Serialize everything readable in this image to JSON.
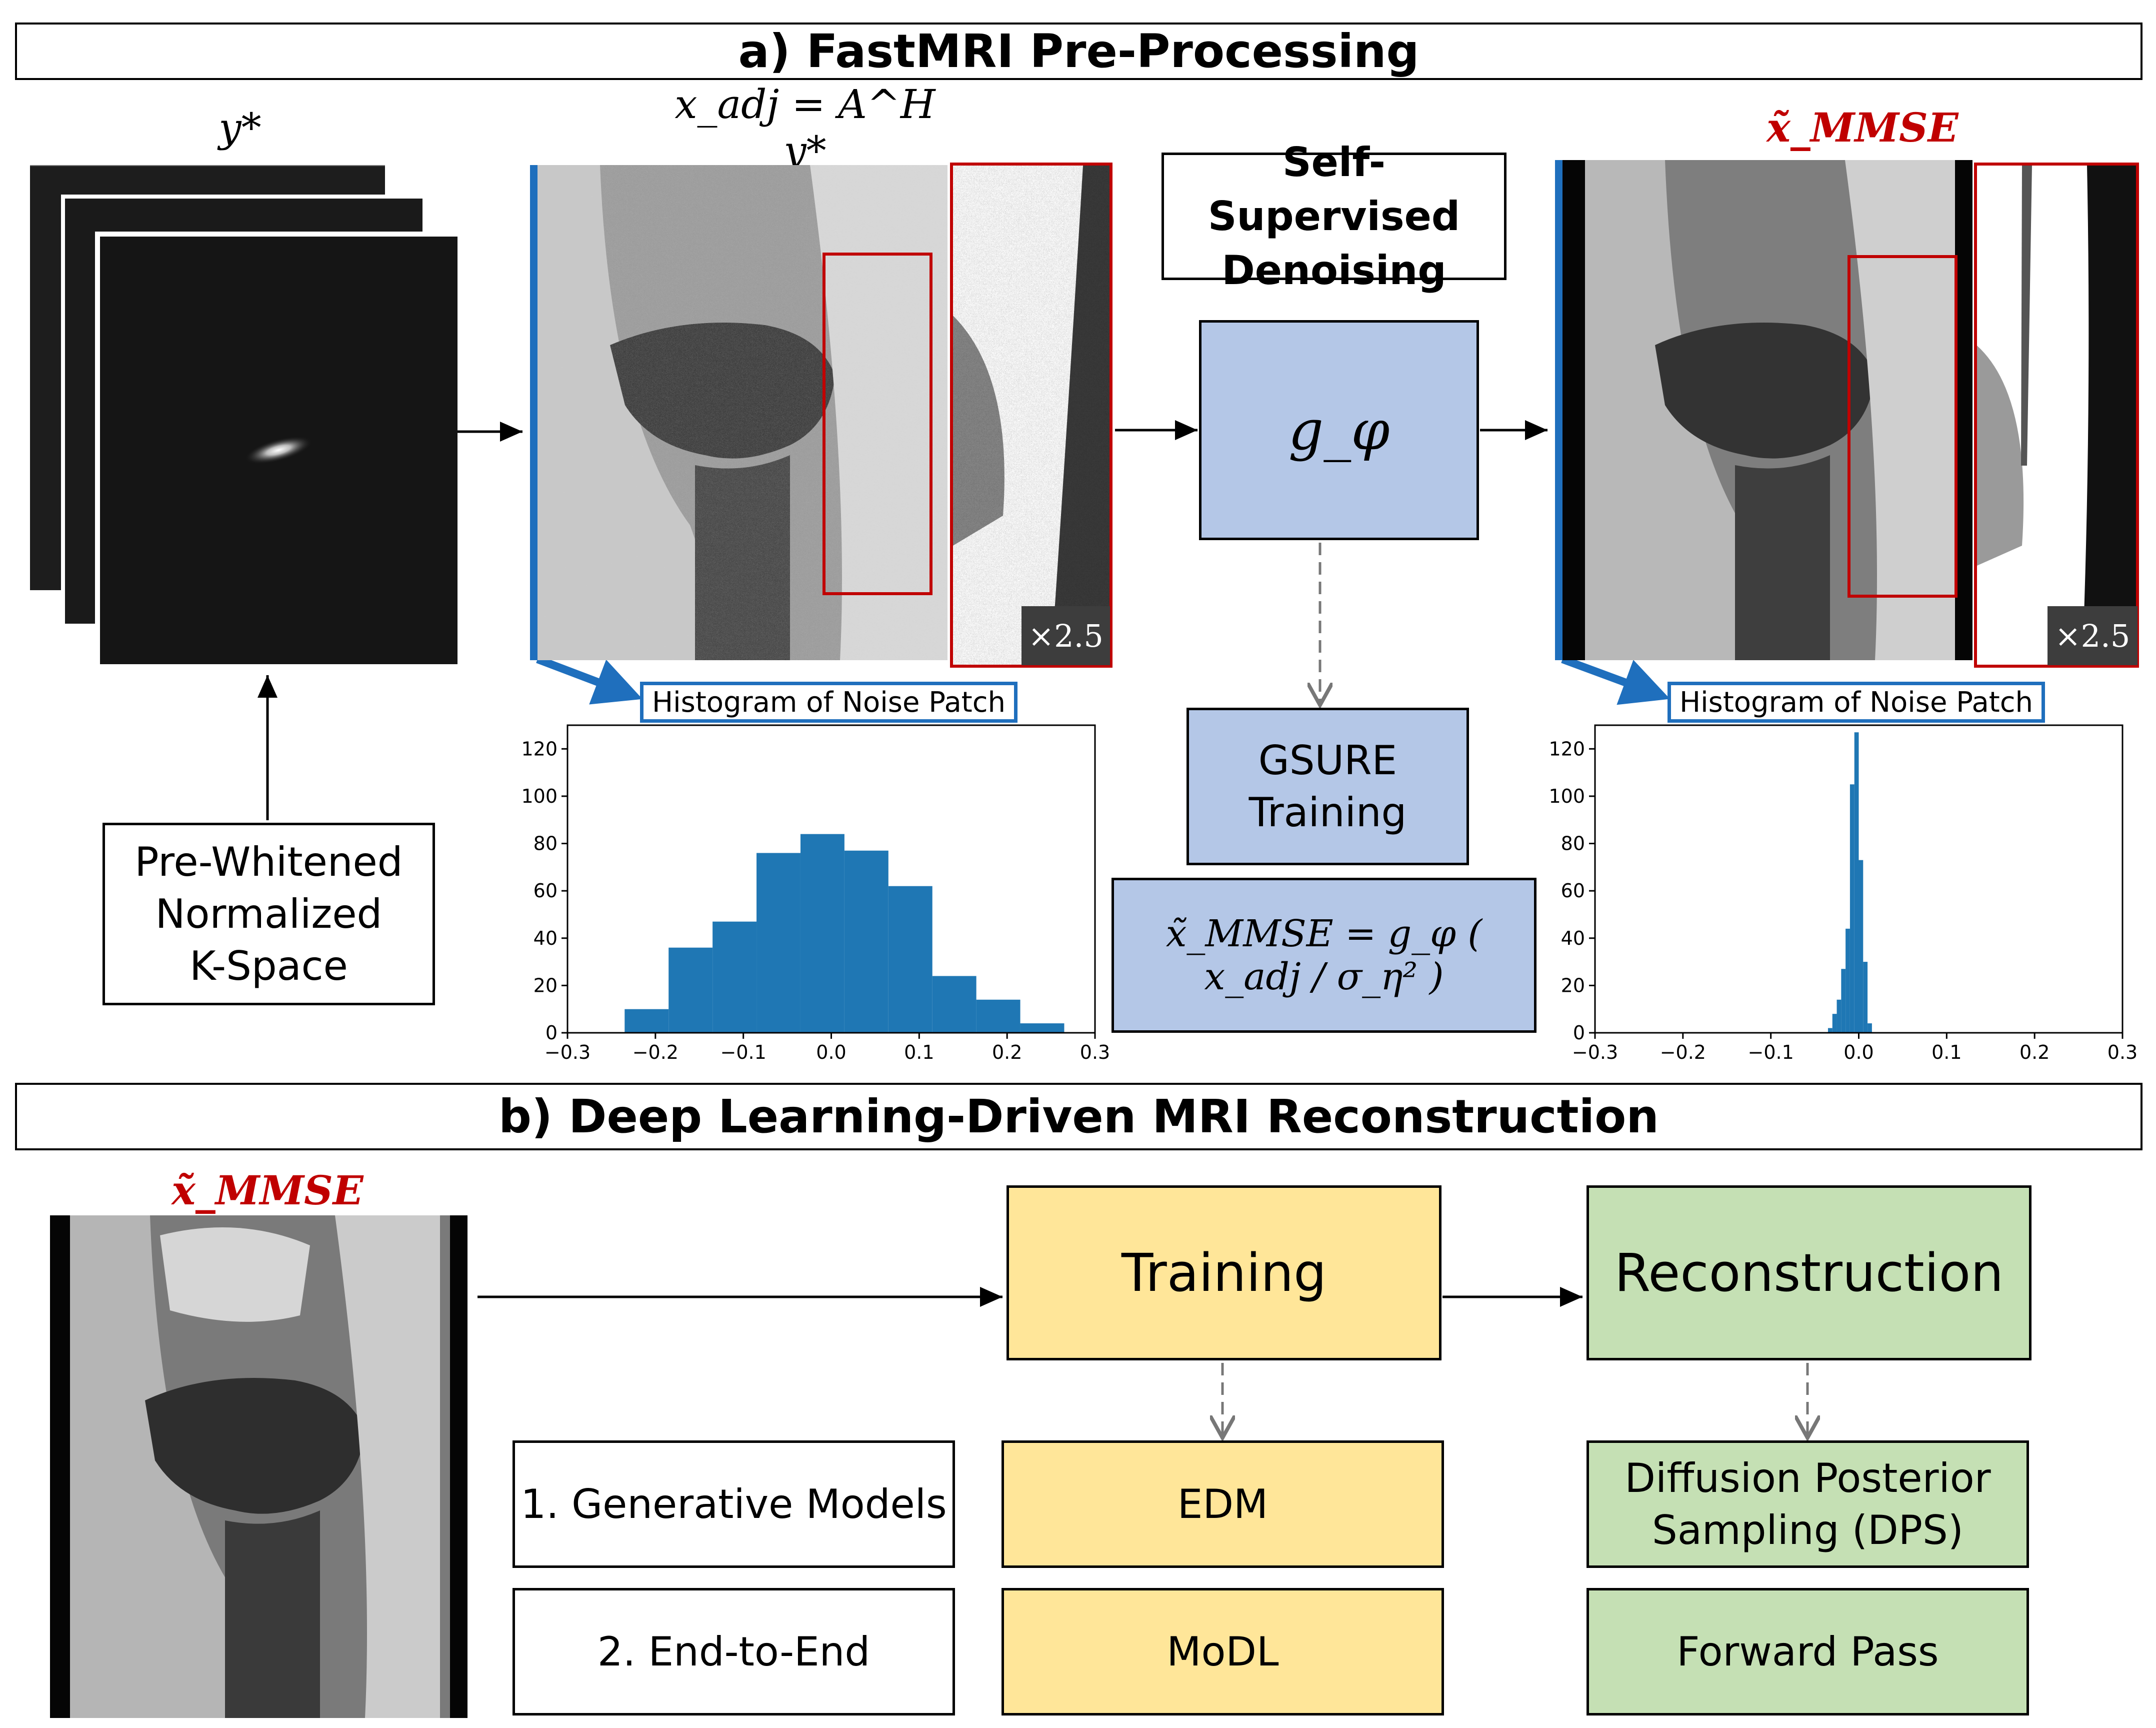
{
  "section_a": {
    "title": "a) FastMRI Pre-Processing",
    "kspace_symbol": "y*",
    "adjoint_symbol": "x_adj = A^H y*",
    "denoised_symbol": "x̃_MMSE",
    "prewhitened_label": [
      "Pre-Whitened",
      "Normalized",
      "K-Space"
    ],
    "self_supervised_label": [
      "Self-Supervised",
      "Denoising"
    ],
    "network_symbol": "g_φ",
    "gsure_label": [
      "GSURE",
      "Training"
    ],
    "mmse_formula": "x̃_MMSE = g_φ ( x_adj / σ_η² )",
    "zoom_label": "×2.5",
    "hist_title": "Histogram of Noise Patch"
  },
  "section_b": {
    "title": "b) Deep Learning-Driven MRI Reconstruction",
    "input_symbol": "x̃_MMSE",
    "training_label": "Training",
    "reconstruction_label": "Reconstruction",
    "rows": [
      {
        "category": "1. Generative Models",
        "training": "EDM",
        "reconstruction": [
          "Diffusion Posterior",
          "Sampling (DPS)"
        ]
      },
      {
        "category": "2. End-to-End",
        "training": "MoDL",
        "reconstruction": [
          "Forward Pass"
        ]
      }
    ]
  },
  "colors": {
    "hist_bar": "#1f77b4",
    "accent_blue": "#1f6fbd",
    "zoom_red": "#c00000",
    "box_blue": "#b4c7e7",
    "box_yellow": "#ffe699",
    "box_green": "#c5e0b4"
  },
  "chart_data": [
    {
      "type": "bar",
      "title": "Histogram of Noise Patch",
      "x": [
        -0.21,
        -0.16,
        -0.11,
        -0.06,
        -0.01,
        0.04,
        0.09,
        0.14,
        0.19,
        0.24
      ],
      "bin_width": 0.05,
      "values": [
        10,
        36,
        47,
        76,
        84,
        77,
        62,
        24,
        14,
        4
      ],
      "xlim": [
        -0.3,
        0.3
      ],
      "ylim": [
        0,
        130
      ],
      "xticks": [
        "−0.3",
        "−0.2",
        "−0.1",
        "0.0",
        "0.1",
        "0.2",
        "0.3"
      ],
      "yticks": [
        "0",
        "20",
        "40",
        "60",
        "80",
        "100",
        "120"
      ]
    },
    {
      "type": "bar",
      "title": "Histogram of Noise Patch",
      "x": [
        -0.0325,
        -0.0275,
        -0.0225,
        -0.0175,
        -0.0125,
        -0.0075,
        -0.0025,
        0.0025,
        0.0075,
        0.0125
      ],
      "bin_width": 0.005,
      "values": [
        2,
        8,
        14,
        27,
        44,
        105,
        127,
        73,
        30,
        4
      ],
      "xlim": [
        -0.3,
        0.3
      ],
      "ylim": [
        0,
        130
      ],
      "xticks": [
        "−0.3",
        "−0.2",
        "−0.1",
        "0.0",
        "0.1",
        "0.2",
        "0.3"
      ],
      "yticks": [
        "0",
        "20",
        "40",
        "60",
        "80",
        "100",
        "120"
      ]
    }
  ]
}
